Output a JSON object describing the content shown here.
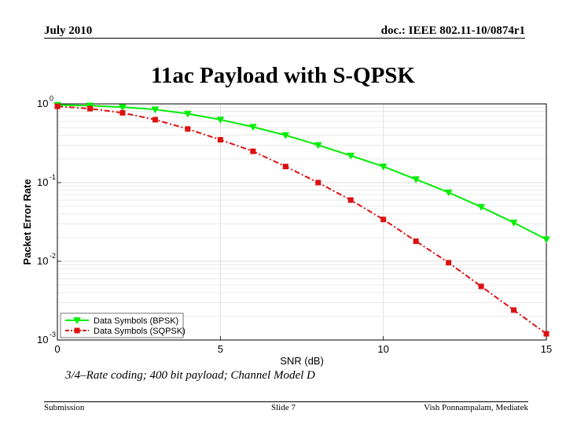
{
  "header": {
    "date": "July 2010",
    "doc_id": "doc.: IEEE 802.11-10/0874r1"
  },
  "slide_title": "11ac Payload with S-QPSK",
  "caption": "3/4–Rate coding; 400 bit payload; Channel Model D",
  "footer": {
    "left": "Submission",
    "center": "Slide 7",
    "right": "Vish Ponnampalam, Mediatek"
  },
  "chart_data": {
    "type": "line",
    "title": "",
    "xlabel": "SNR (dB)",
    "ylabel": "Packet Error Rate",
    "x_scale": "linear",
    "y_scale": "log",
    "xlim": [
      0,
      15
    ],
    "ylim": [
      0.001,
      1
    ],
    "x_ticks": [
      0,
      5,
      10,
      15
    ],
    "y_ticks": [
      {
        "value": 1,
        "base": "10",
        "exp": "0"
      },
      {
        "value": 0.1,
        "base": "10",
        "exp": "-1"
      },
      {
        "value": 0.01,
        "base": "10",
        "exp": "-2"
      },
      {
        "value": 0.001,
        "base": "10",
        "exp": "-3"
      }
    ],
    "grid": true,
    "legend_position": "bottom-left",
    "x": [
      0,
      1,
      2,
      3,
      4,
      5,
      6,
      7,
      8,
      9,
      10,
      11,
      12,
      13,
      14,
      15
    ],
    "series": [
      {
        "name": "Data Symbols (BPSK)",
        "color": "#00ee00",
        "line_style": "solid",
        "marker": "triangle-down",
        "values": [
          0.97,
          0.95,
          0.91,
          0.85,
          0.75,
          0.63,
          0.51,
          0.4,
          0.3,
          0.22,
          0.16,
          0.11,
          0.075,
          0.049,
          0.031,
          0.019
        ]
      },
      {
        "name": "Data Symbols (SQPSK)",
        "color": "#dd1111",
        "line_style": "dashdot",
        "marker": "square",
        "values": [
          0.93,
          0.87,
          0.77,
          0.63,
          0.48,
          0.35,
          0.25,
          0.16,
          0.1,
          0.06,
          0.034,
          0.018,
          0.0096,
          0.0048,
          0.0024,
          0.0012
        ]
      }
    ]
  }
}
